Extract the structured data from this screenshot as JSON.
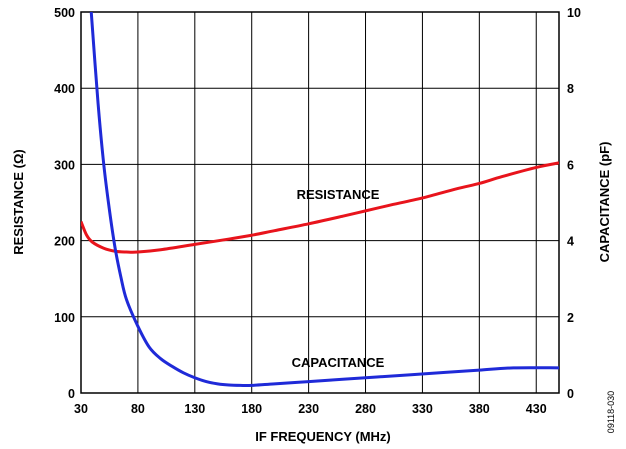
{
  "chart_data": {
    "type": "line",
    "xlabel": "IF FREQUENCY (MHz)",
    "ylabel_left": "RESISTANCE (Ω)",
    "ylabel_right": "CAPACITANCE (pF)",
    "xlim": [
      30,
      450
    ],
    "ylim_left": [
      0,
      500
    ],
    "ylim_right": [
      0,
      10
    ],
    "x_ticks": [
      30,
      80,
      130,
      180,
      230,
      280,
      330,
      380,
      430
    ],
    "y_ticks_left": [
      0,
      100,
      200,
      300,
      400,
      500
    ],
    "y_ticks_right": [
      0,
      2,
      4,
      6,
      8,
      10
    ],
    "grid": true,
    "series": [
      {
        "name": "RESISTANCE",
        "axis": "left",
        "color": "#e8141c",
        "x": [
          30,
          35,
          40,
          50,
          60,
          70,
          80,
          100,
          130,
          160,
          180,
          200,
          230,
          260,
          280,
          300,
          330,
          360,
          380,
          400,
          430,
          450
        ],
        "values": [
          225,
          207,
          198,
          190,
          186,
          185,
          185,
          188,
          195,
          202,
          207,
          213,
          222,
          232,
          239,
          246,
          256,
          268,
          275,
          284,
          296,
          302
        ]
      },
      {
        "name": "CAPACITANCE",
        "axis": "right",
        "color": "#1f2ad8",
        "x": [
          39,
          45,
          50,
          55,
          60,
          65,
          70,
          80,
          90,
          100,
          110,
          120,
          130,
          140,
          150,
          160,
          170,
          180,
          200,
          230,
          260,
          290,
          320,
          350,
          380,
          410,
          450
        ],
        "values": [
          10,
          7.6,
          6.0,
          4.8,
          3.8,
          3.05,
          2.45,
          1.75,
          1.2,
          0.9,
          0.7,
          0.53,
          0.4,
          0.3,
          0.24,
          0.21,
          0.2,
          0.2,
          0.24,
          0.3,
          0.36,
          0.42,
          0.48,
          0.54,
          0.6,
          0.66,
          0.66
        ]
      }
    ],
    "annotations": [
      "RESISTANCE",
      "CAPACITANCE"
    ]
  },
  "figure_id": "09118-030"
}
